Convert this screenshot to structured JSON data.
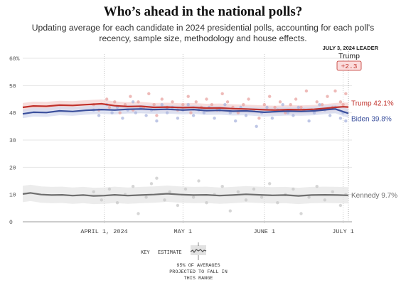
{
  "title": "Who’s ahead in the national polls?",
  "subtitle": "Updating average for each candidate in 2024 presidential polls, accounting for each poll’s recency, sample size, methodology and house effects.",
  "leader_box": {
    "date_label": "JULY 3, 2024 LEADER",
    "leader_name": "Trump",
    "margin": "+2.3"
  },
  "colors": {
    "trump": "#c0312b",
    "biden": "#3a4f9c",
    "kennedy": "#6e6e6e",
    "trump_band": "#f4d2d0",
    "biden_band": "#d4d9ef",
    "kennedy_band": "#e6e6e6",
    "trump_dot": "#e8a3a0",
    "biden_dot": "#a9b4dd",
    "kennedy_dot": "#c8c8c8",
    "leader_box_bg": "#fbdcdc"
  },
  "key": {
    "label": "KEY",
    "estimate": "ESTIMATE",
    "range_note": [
      "95% OF AVERAGES",
      "PROJECTED TO FALL IN",
      "THIS RANGE"
    ]
  },
  "chart_data": {
    "type": "line",
    "x_range": [
      "2024-03-01",
      "2024-07-03"
    ],
    "ylim": [
      0,
      60
    ],
    "y_ticks": [
      0,
      10,
      20,
      30,
      40,
      50,
      60
    ],
    "y_tick_labels": [
      "0",
      "10",
      "20",
      "30",
      "40",
      "50",
      "60%"
    ],
    "x_ticks": [
      {
        "date": "2024-04-01",
        "label": "APRIL 1, 2024"
      },
      {
        "date": "2024-05-01",
        "label": "MAY 1"
      },
      {
        "date": "2024-06-01",
        "label": "JUNE 1"
      },
      {
        "date": "2024-07-01",
        "label": "JULY 1"
      }
    ],
    "grid": "vertical-dotted",
    "series": [
      {
        "name": "Trump",
        "end_label": "Trump 42.1%",
        "band_width": 1.6,
        "points": [
          [
            "2024-03-01",
            42.0
          ],
          [
            "2024-03-05",
            42.5
          ],
          [
            "2024-03-10",
            42.4
          ],
          [
            "2024-03-15",
            42.8
          ],
          [
            "2024-03-20",
            42.7
          ],
          [
            "2024-03-25",
            43.0
          ],
          [
            "2024-03-31",
            43.3
          ],
          [
            "2024-04-05",
            42.6
          ],
          [
            "2024-04-10",
            42.3
          ],
          [
            "2024-04-15",
            42.4
          ],
          [
            "2024-04-20",
            42.0
          ],
          [
            "2024-04-25",
            42.1
          ],
          [
            "2024-05-01",
            41.9
          ],
          [
            "2024-05-05",
            42.0
          ],
          [
            "2024-05-10",
            41.7
          ],
          [
            "2024-05-15",
            41.8
          ],
          [
            "2024-05-20",
            41.5
          ],
          [
            "2024-05-25",
            41.4
          ],
          [
            "2024-06-01",
            41.1
          ],
          [
            "2024-06-05",
            41.0
          ],
          [
            "2024-06-10",
            41.2
          ],
          [
            "2024-06-15",
            41.1
          ],
          [
            "2024-06-20",
            41.3
          ],
          [
            "2024-06-25",
            41.7
          ],
          [
            "2024-06-28",
            42.0
          ],
          [
            "2024-07-01",
            42.2
          ],
          [
            "2024-07-03",
            42.1
          ]
        ],
        "polls": [
          [
            "2024-03-28",
            43
          ],
          [
            "2024-03-30",
            41
          ],
          [
            "2024-04-02",
            45
          ],
          [
            "2024-04-03",
            42
          ],
          [
            "2024-04-05",
            44
          ],
          [
            "2024-04-07",
            40
          ],
          [
            "2024-04-09",
            43
          ],
          [
            "2024-04-11",
            46
          ],
          [
            "2024-04-12",
            41
          ],
          [
            "2024-04-14",
            44
          ],
          [
            "2024-04-16",
            42
          ],
          [
            "2024-04-18",
            47
          ],
          [
            "2024-04-20",
            43
          ],
          [
            "2024-04-21",
            39
          ],
          [
            "2024-04-23",
            45
          ],
          [
            "2024-04-25",
            42
          ],
          [
            "2024-04-27",
            44
          ],
          [
            "2024-04-29",
            41
          ],
          [
            "2024-05-01",
            43
          ],
          [
            "2024-05-03",
            46
          ],
          [
            "2024-05-04",
            40
          ],
          [
            "2024-05-06",
            44
          ],
          [
            "2024-05-08",
            42
          ],
          [
            "2024-05-10",
            45
          ],
          [
            "2024-05-12",
            43
          ],
          [
            "2024-05-14",
            41
          ],
          [
            "2024-05-16",
            47
          ],
          [
            "2024-05-18",
            44
          ],
          [
            "2024-05-20",
            42
          ],
          [
            "2024-05-22",
            40
          ],
          [
            "2024-05-24",
            43
          ],
          [
            "2024-05-26",
            45
          ],
          [
            "2024-05-28",
            41
          ],
          [
            "2024-05-30",
            38
          ],
          [
            "2024-06-01",
            43
          ],
          [
            "2024-06-03",
            46
          ],
          [
            "2024-06-05",
            42
          ],
          [
            "2024-06-07",
            44
          ],
          [
            "2024-06-09",
            40
          ],
          [
            "2024-06-11",
            43
          ],
          [
            "2024-06-13",
            45
          ],
          [
            "2024-06-15",
            42
          ],
          [
            "2024-06-17",
            48
          ],
          [
            "2024-06-19",
            41
          ],
          [
            "2024-06-21",
            44
          ],
          [
            "2024-06-23",
            43
          ],
          [
            "2024-06-25",
            46
          ],
          [
            "2024-06-27",
            42
          ],
          [
            "2024-06-28",
            48
          ],
          [
            "2024-06-30",
            44
          ],
          [
            "2024-07-01",
            43
          ],
          [
            "2024-07-02",
            47
          ]
        ]
      },
      {
        "name": "Biden",
        "end_label": "Biden 39.8%",
        "band_width": 1.6,
        "points": [
          [
            "2024-03-01",
            39.6
          ],
          [
            "2024-03-05",
            40.2
          ],
          [
            "2024-03-10",
            40.1
          ],
          [
            "2024-03-15",
            40.7
          ],
          [
            "2024-03-20",
            40.5
          ],
          [
            "2024-03-25",
            40.9
          ],
          [
            "2024-03-31",
            41.2
          ],
          [
            "2024-04-05",
            41.0
          ],
          [
            "2024-04-10",
            41.3
          ],
          [
            "2024-04-15",
            41.4
          ],
          [
            "2024-04-20",
            41.2
          ],
          [
            "2024-04-25",
            41.3
          ],
          [
            "2024-05-01",
            41.0
          ],
          [
            "2024-05-05",
            41.2
          ],
          [
            "2024-05-10",
            40.8
          ],
          [
            "2024-05-15",
            40.9
          ],
          [
            "2024-05-20",
            40.6
          ],
          [
            "2024-05-25",
            40.7
          ],
          [
            "2024-06-01",
            40.2
          ],
          [
            "2024-06-05",
            40.4
          ],
          [
            "2024-06-10",
            40.6
          ],
          [
            "2024-06-15",
            40.5
          ],
          [
            "2024-06-20",
            40.7
          ],
          [
            "2024-06-25",
            41.2
          ],
          [
            "2024-06-28",
            41.4
          ],
          [
            "2024-07-01",
            40.4
          ],
          [
            "2024-07-03",
            39.8
          ]
        ],
        "polls": [
          [
            "2024-03-28",
            41
          ],
          [
            "2024-03-30",
            39
          ],
          [
            "2024-04-02",
            43
          ],
          [
            "2024-04-04",
            40
          ],
          [
            "2024-04-06",
            42
          ],
          [
            "2024-04-08",
            38
          ],
          [
            "2024-04-10",
            41
          ],
          [
            "2024-04-12",
            44
          ],
          [
            "2024-04-13",
            40
          ],
          [
            "2024-04-15",
            42
          ],
          [
            "2024-04-17",
            39
          ],
          [
            "2024-04-19",
            41
          ],
          [
            "2024-04-21",
            37
          ],
          [
            "2024-04-23",
            43
          ],
          [
            "2024-04-25",
            40
          ],
          [
            "2024-04-27",
            42
          ],
          [
            "2024-04-29",
            38
          ],
          [
            "2024-05-01",
            41
          ],
          [
            "2024-05-03",
            43
          ],
          [
            "2024-05-05",
            39
          ],
          [
            "2024-05-07",
            41
          ],
          [
            "2024-05-09",
            40
          ],
          [
            "2024-05-11",
            42
          ],
          [
            "2024-05-13",
            38
          ],
          [
            "2024-05-15",
            41
          ],
          [
            "2024-05-17",
            43
          ],
          [
            "2024-05-19",
            40
          ],
          [
            "2024-05-21",
            37
          ],
          [
            "2024-05-23",
            42
          ],
          [
            "2024-05-25",
            39
          ],
          [
            "2024-05-27",
            41
          ],
          [
            "2024-05-29",
            35
          ],
          [
            "2024-05-31",
            40
          ],
          [
            "2024-06-02",
            42
          ],
          [
            "2024-06-04",
            38
          ],
          [
            "2024-06-06",
            41
          ],
          [
            "2024-06-08",
            43
          ],
          [
            "2024-06-10",
            40
          ],
          [
            "2024-06-12",
            39
          ],
          [
            "2024-06-14",
            42
          ],
          [
            "2024-06-16",
            41
          ],
          [
            "2024-06-18",
            37
          ],
          [
            "2024-06-20",
            40
          ],
          [
            "2024-06-22",
            43
          ],
          [
            "2024-06-24",
            41
          ],
          [
            "2024-06-26",
            39
          ],
          [
            "2024-06-28",
            42
          ],
          [
            "2024-06-30",
            38
          ],
          [
            "2024-07-01",
            40
          ],
          [
            "2024-07-02",
            37
          ]
        ]
      },
      {
        "name": "Kennedy",
        "end_label": "Kennedy 9.7%",
        "band_width": 3.0,
        "points": [
          [
            "2024-03-01",
            10.2
          ],
          [
            "2024-03-04",
            10.6
          ],
          [
            "2024-03-08",
            10.0
          ],
          [
            "2024-03-12",
            9.8
          ],
          [
            "2024-03-16",
            9.9
          ],
          [
            "2024-03-20",
            9.6
          ],
          [
            "2024-03-24",
            9.8
          ],
          [
            "2024-03-28",
            9.5
          ],
          [
            "2024-04-01",
            9.6
          ],
          [
            "2024-04-05",
            9.9
          ],
          [
            "2024-04-10",
            9.6
          ],
          [
            "2024-04-15",
            9.8
          ],
          [
            "2024-04-20",
            10.0
          ],
          [
            "2024-04-25",
            10.3
          ],
          [
            "2024-04-30",
            10.0
          ],
          [
            "2024-05-05",
            9.8
          ],
          [
            "2024-05-10",
            9.9
          ],
          [
            "2024-05-15",
            9.6
          ],
          [
            "2024-05-20",
            9.8
          ],
          [
            "2024-05-25",
            10.1
          ],
          [
            "2024-05-30",
            9.9
          ],
          [
            "2024-06-04",
            9.7
          ],
          [
            "2024-06-09",
            9.8
          ],
          [
            "2024-06-14",
            9.5
          ],
          [
            "2024-06-19",
            9.8
          ],
          [
            "2024-06-24",
            9.9
          ],
          [
            "2024-06-29",
            9.8
          ],
          [
            "2024-07-03",
            9.7
          ]
        ],
        "polls": [
          [
            "2024-03-28",
            11
          ],
          [
            "2024-03-31",
            8
          ],
          [
            "2024-04-03",
            12
          ],
          [
            "2024-04-06",
            7
          ],
          [
            "2024-04-09",
            10
          ],
          [
            "2024-04-12",
            13
          ],
          [
            "2024-04-14",
            3
          ],
          [
            "2024-04-17",
            9
          ],
          [
            "2024-04-19",
            14
          ],
          [
            "2024-04-21",
            16
          ],
          [
            "2024-04-24",
            8
          ],
          [
            "2024-04-26",
            11
          ],
          [
            "2024-04-29",
            6
          ],
          [
            "2024-05-02",
            12
          ],
          [
            "2024-05-05",
            9
          ],
          [
            "2024-05-07",
            15
          ],
          [
            "2024-05-10",
            7
          ],
          [
            "2024-05-13",
            10
          ],
          [
            "2024-05-16",
            13
          ],
          [
            "2024-05-19",
            4
          ],
          [
            "2024-05-22",
            11
          ],
          [
            "2024-05-25",
            8
          ],
          [
            "2024-05-28",
            12
          ],
          [
            "2024-05-31",
            9
          ],
          [
            "2024-06-03",
            14
          ],
          [
            "2024-06-06",
            7
          ],
          [
            "2024-06-09",
            10
          ],
          [
            "2024-06-12",
            12
          ],
          [
            "2024-06-15",
            3
          ],
          [
            "2024-06-18",
            9
          ],
          [
            "2024-06-21",
            13
          ],
          [
            "2024-06-24",
            8
          ],
          [
            "2024-06-27",
            11
          ],
          [
            "2024-06-30",
            6
          ],
          [
            "2024-07-02",
            10
          ]
        ]
      }
    ]
  }
}
